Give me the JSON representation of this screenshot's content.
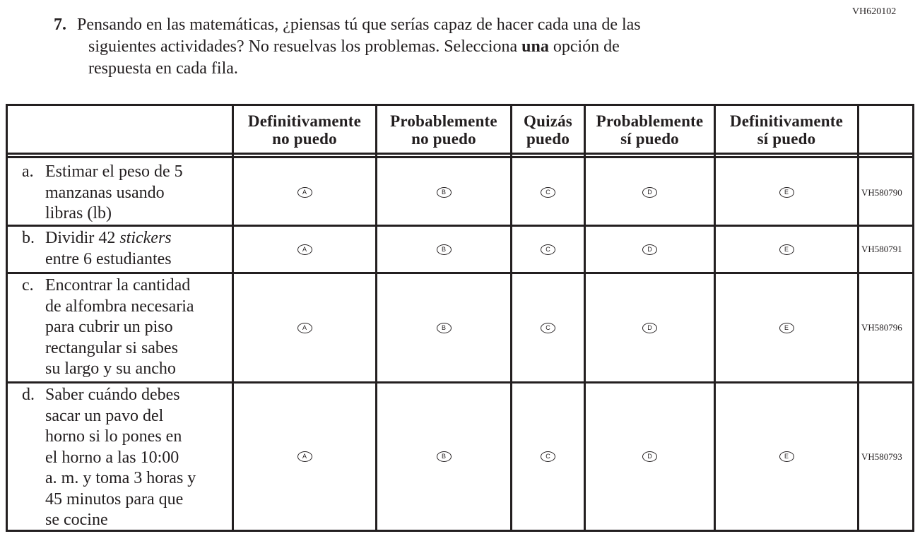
{
  "item_code": "VH620102",
  "question": {
    "number": "7.",
    "text_before_bold": "Pensando en las matemáticas, ¿piensas tú que serías capaz de hacer cada una de las siguientes actividades? No resuelvas los problemas. Selecciona ",
    "line1": "Pensando en las matemáticas, ¿piensas tú que serías capaz de hacer cada una de las",
    "line2_pre": "siguientes actividades? No resuelvas los problemas. Selecciona ",
    "bold": "una",
    "line2_post": " opción de",
    "line3": "respuesta en cada fila."
  },
  "columns": [
    {
      "line1": "Definitivamente",
      "line2": "no puedo",
      "letter": "A"
    },
    {
      "line1": "Probablemente",
      "line2": "no puedo",
      "letter": "B"
    },
    {
      "line1": "Quizás",
      "line2": "puedo",
      "letter": "C"
    },
    {
      "line1": "Probablemente",
      "line2": "sí puedo",
      "letter": "D"
    },
    {
      "line1": "Definitivamente",
      "line2": "sí puedo",
      "letter": "E"
    }
  ],
  "rows": [
    {
      "letter": "a.",
      "lines": [
        "Estimar el peso de 5",
        "manzanas usando",
        "libras (lb)"
      ],
      "code": "VH580790"
    },
    {
      "letter": "b.",
      "pre": "Dividir 42 ",
      "italic": "stickers",
      "lines": [
        "entre 6 estudiantes"
      ],
      "code": "VH580791"
    },
    {
      "letter": "c.",
      "lines": [
        "Encontrar la cantidad",
        "de alfombra necesaria",
        "para cubrir un piso",
        "rectangular si sabes",
        "su largo y su ancho"
      ],
      "code": "VH580796"
    },
    {
      "letter": "d.",
      "lines": [
        "Saber cuándo debes",
        "sacar un pavo del",
        "horno si lo pones en",
        "el horno a las 10:00",
        "a. m. y toma 3 horas y",
        "45 minutos para que",
        "se cocine"
      ],
      "code": "VH580793"
    }
  ]
}
